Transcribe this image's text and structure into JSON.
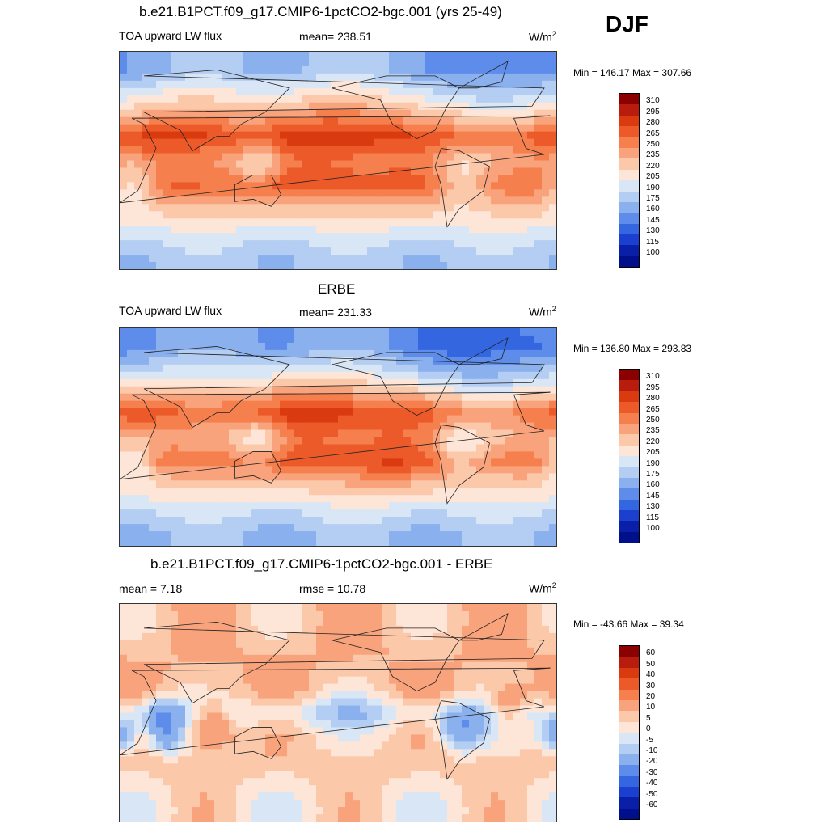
{
  "season": "DJF",
  "panels": [
    {
      "title": "b.e21.B1PCT.f09_g17.CMIP6-1pctCO2-bgc.001 (yrs 25-49)",
      "left_label": "TOA upward LW flux",
      "center_label": "mean= 238.51",
      "units": "W/m",
      "units_sup": "2",
      "minmax": "Min = 146.17 Max = 307.66",
      "colorbar_ticks": [
        "310",
        "295",
        "280",
        "265",
        "250",
        "235",
        "220",
        "205",
        "190",
        "175",
        "160",
        "145",
        "130",
        "115",
        "100"
      ]
    },
    {
      "title": "ERBE",
      "left_label": "TOA upward LW flux",
      "center_label": "mean= 231.33",
      "units": "W/m",
      "units_sup": "2",
      "minmax": "Min = 136.80 Max = 293.83",
      "colorbar_ticks": [
        "310",
        "295",
        "280",
        "265",
        "250",
        "235",
        "220",
        "205",
        "190",
        "175",
        "160",
        "145",
        "130",
        "115",
        "100"
      ]
    },
    {
      "title": "b.e21.B1PCT.f09_g17.CMIP6-1pctCO2-bgc.001 - ERBE",
      "left_label": "mean =   7.18",
      "center_label": "rmse =  10.78",
      "units": "W/m",
      "units_sup": "2",
      "minmax": "Min = -43.66 Max =  39.34",
      "colorbar_ticks": [
        "60",
        "50",
        "40",
        "30",
        "20",
        "10",
        "5",
        "0",
        "-5",
        "-10",
        "-20",
        "-30",
        "-40",
        "-50",
        "-60"
      ]
    }
  ],
  "colors": {
    "scale": [
      "#8b0000",
      "#b71c0c",
      "#d93a10",
      "#ec5a2a",
      "#f5804e",
      "#f9a37c",
      "#fcc8aa",
      "#fde6d8",
      "#d8e6f5",
      "#b4cdf2",
      "#8bb0ee",
      "#5d8ceb",
      "#3466e0",
      "#1b3fce",
      "#0a1fa8",
      "#00108a"
    ],
    "coast": "#222222"
  },
  "chart_data": [
    {
      "type": "heatmap",
      "title": "b.e21.B1PCT.f09_g17.CMIP6-1pctCO2-bgc.001 (yrs 25-49)",
      "variable": "TOA upward LW flux",
      "units": "W/m2",
      "mean": 238.51,
      "min": 146.17,
      "max": 307.66,
      "levels": [
        100,
        115,
        130,
        145,
        160,
        175,
        190,
        205,
        220,
        235,
        250,
        265,
        280,
        295,
        310
      ],
      "zonal_profile_approx": [
        {
          "lat": 75,
          "value": 175
        },
        {
          "lat": 55,
          "value": 205
        },
        {
          "lat": 35,
          "value": 240
        },
        {
          "lat": 20,
          "value": 275
        },
        {
          "lat": 0,
          "value": 250
        },
        {
          "lat": -20,
          "value": 270
        },
        {
          "lat": -40,
          "value": 230
        },
        {
          "lat": -60,
          "value": 200
        },
        {
          "lat": -80,
          "value": 180
        }
      ]
    },
    {
      "type": "heatmap",
      "title": "ERBE",
      "variable": "TOA upward LW flux",
      "units": "W/m2",
      "mean": 231.33,
      "min": 136.8,
      "max": 293.83,
      "levels": [
        100,
        115,
        130,
        145,
        160,
        175,
        190,
        205,
        220,
        235,
        250,
        265,
        280,
        295,
        310
      ],
      "zonal_profile_approx": [
        {
          "lat": 75,
          "value": 165
        },
        {
          "lat": 55,
          "value": 195
        },
        {
          "lat": 35,
          "value": 235
        },
        {
          "lat": 20,
          "value": 270
        },
        {
          "lat": 0,
          "value": 245
        },
        {
          "lat": -20,
          "value": 265
        },
        {
          "lat": -40,
          "value": 225
        },
        {
          "lat": -60,
          "value": 195
        },
        {
          "lat": -80,
          "value": 175
        }
      ]
    },
    {
      "type": "heatmap",
      "title": "b.e21.B1PCT.f09_g17.CMIP6-1pctCO2-bgc.001 - ERBE",
      "variable": "difference",
      "units": "W/m2",
      "mean": 7.18,
      "rmse": 10.78,
      "min": -43.66,
      "max": 39.34,
      "levels": [
        -60,
        -50,
        -40,
        -30,
        -20,
        -10,
        -5,
        0,
        5,
        10,
        20,
        30,
        40,
        50,
        60
      ],
      "zonal_profile_approx": [
        {
          "lat": 75,
          "value": 8
        },
        {
          "lat": 55,
          "value": 10
        },
        {
          "lat": 35,
          "value": 10
        },
        {
          "lat": 20,
          "value": 8
        },
        {
          "lat": 0,
          "value": -5
        },
        {
          "lat": -20,
          "value": 5
        },
        {
          "lat": -40,
          "value": 8
        },
        {
          "lat": -60,
          "value": 5
        },
        {
          "lat": -80,
          "value": 3
        }
      ]
    }
  ]
}
